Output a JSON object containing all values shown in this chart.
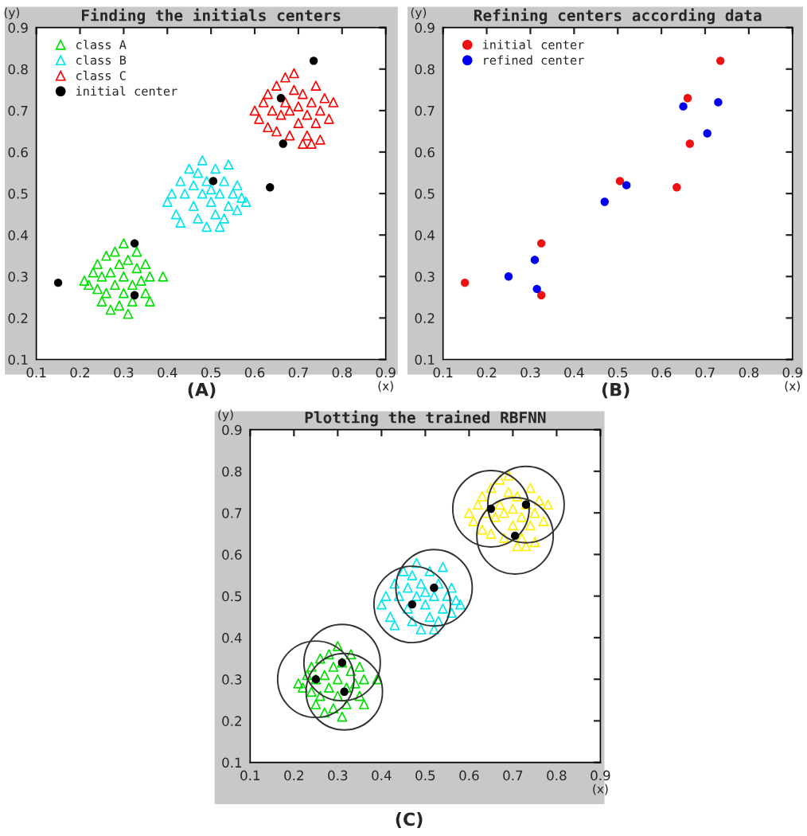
{
  "chart_data": [
    {
      "type": "scatter",
      "title": "Finding the initials centers",
      "xlabel": "(x)",
      "ylabel": "(y)",
      "annotations": [
        "(A)"
      ],
      "xlim": [
        0.1,
        0.9
      ],
      "ylim": [
        0.1,
        0.9
      ],
      "xticks": [
        0.1,
        0.2,
        0.3,
        0.4,
        0.5,
        0.6,
        0.7,
        0.8,
        0.9
      ],
      "yticks": [
        0.1,
        0.2,
        0.3,
        0.4,
        0.5,
        0.6,
        0.7,
        0.8,
        0.9
      ],
      "grid": false,
      "legend": "top left",
      "marker": "triangle",
      "series": [
        {
          "name": "class A",
          "color": "#00e000",
          "x": [
            0.21,
            0.22,
            0.23,
            0.24,
            0.24,
            0.25,
            0.25,
            0.26,
            0.26,
            0.27,
            0.27,
            0.28,
            0.28,
            0.29,
            0.29,
            0.3,
            0.3,
            0.3,
            0.31,
            0.31,
            0.32,
            0.32,
            0.33,
            0.33,
            0.34,
            0.35,
            0.35,
            0.36,
            0.36,
            0.39
          ],
          "values": [
            0.29,
            0.28,
            0.31,
            0.27,
            0.33,
            0.24,
            0.3,
            0.35,
            0.26,
            0.22,
            0.31,
            0.28,
            0.36,
            0.23,
            0.33,
            0.3,
            0.38,
            0.26,
            0.21,
            0.34,
            0.28,
            0.24,
            0.32,
            0.36,
            0.29,
            0.26,
            0.33,
            0.3,
            0.24,
            0.3
          ]
        },
        {
          "name": "class B",
          "color": "#00e5ee",
          "x": [
            0.4,
            0.41,
            0.42,
            0.43,
            0.43,
            0.44,
            0.45,
            0.46,
            0.46,
            0.47,
            0.47,
            0.48,
            0.48,
            0.49,
            0.49,
            0.5,
            0.5,
            0.51,
            0.51,
            0.52,
            0.52,
            0.53,
            0.54,
            0.54,
            0.55,
            0.56,
            0.56,
            0.57,
            0.58,
            0.53
          ],
          "values": [
            0.48,
            0.5,
            0.45,
            0.53,
            0.43,
            0.5,
            0.56,
            0.47,
            0.52,
            0.44,
            0.55,
            0.5,
            0.58,
            0.42,
            0.53,
            0.48,
            0.51,
            0.45,
            0.56,
            0.5,
            0.42,
            0.53,
            0.47,
            0.57,
            0.5,
            0.52,
            0.46,
            0.49,
            0.48,
            0.44
          ]
        },
        {
          "name": "class C",
          "color": "#ff0000",
          "x": [
            0.6,
            0.61,
            0.62,
            0.63,
            0.63,
            0.64,
            0.65,
            0.65,
            0.66,
            0.67,
            0.67,
            0.68,
            0.68,
            0.69,
            0.69,
            0.7,
            0.7,
            0.71,
            0.71,
            0.72,
            0.72,
            0.73,
            0.74,
            0.74,
            0.75,
            0.75,
            0.76,
            0.77,
            0.78,
            0.73
          ],
          "values": [
            0.7,
            0.68,
            0.72,
            0.66,
            0.74,
            0.7,
            0.76,
            0.65,
            0.69,
            0.78,
            0.72,
            0.64,
            0.7,
            0.75,
            0.79,
            0.67,
            0.71,
            0.62,
            0.74,
            0.69,
            0.64,
            0.72,
            0.67,
            0.76,
            0.7,
            0.63,
            0.73,
            0.68,
            0.72,
            0.62
          ]
        },
        {
          "name": "initial center",
          "color": "#000000",
          "marker": "circle",
          "x": [
            0.15,
            0.325,
            0.325,
            0.505,
            0.635,
            0.66,
            0.665,
            0.735
          ],
          "values": [
            0.285,
            0.38,
            0.255,
            0.53,
            0.515,
            0.73,
            0.62,
            0.82
          ]
        }
      ]
    },
    {
      "type": "scatter",
      "title": "Refining centers according data",
      "xlabel": "(x)",
      "ylabel": "(y)",
      "annotations": [
        "(B)"
      ],
      "xlim": [
        0.1,
        0.9
      ],
      "ylim": [
        0.1,
        0.9
      ],
      "xticks": [
        0.1,
        0.2,
        0.3,
        0.4,
        0.5,
        0.6,
        0.7,
        0.8,
        0.9
      ],
      "yticks": [
        0.1,
        0.2,
        0.3,
        0.4,
        0.5,
        0.6,
        0.7,
        0.8,
        0.9
      ],
      "grid": false,
      "legend": "top left",
      "marker": "circle",
      "series": [
        {
          "name": "initial center",
          "color": "#ee1111",
          "x": [
            0.15,
            0.325,
            0.325,
            0.505,
            0.635,
            0.66,
            0.665,
            0.735
          ],
          "values": [
            0.285,
            0.38,
            0.255,
            0.53,
            0.515,
            0.73,
            0.62,
            0.82
          ]
        },
        {
          "name": "refined center",
          "color": "#0000ee",
          "x": [
            0.25,
            0.31,
            0.315,
            0.47,
            0.52,
            0.65,
            0.705,
            0.73
          ],
          "values": [
            0.3,
            0.34,
            0.27,
            0.48,
            0.52,
            0.71,
            0.645,
            0.72
          ]
        }
      ]
    },
    {
      "type": "scatter",
      "title": "Plotting the trained RBFNN",
      "xlabel": "(x)",
      "ylabel": "(y)",
      "annotations": [
        "(C)"
      ],
      "xlim": [
        0.1,
        0.9
      ],
      "ylim": [
        0.1,
        0.9
      ],
      "xticks": [
        0.1,
        0.2,
        0.3,
        0.4,
        0.5,
        0.6,
        0.7,
        0.8,
        0.9
      ],
      "yticks": [
        0.1,
        0.2,
        0.3,
        0.4,
        0.5,
        0.6,
        0.7,
        0.8,
        0.9
      ],
      "grid": false,
      "legend": false,
      "marker": "triangle",
      "series": [
        {
          "color": "#00e000",
          "x": [
            0.21,
            0.22,
            0.23,
            0.24,
            0.24,
            0.25,
            0.25,
            0.26,
            0.26,
            0.27,
            0.27,
            0.28,
            0.28,
            0.29,
            0.29,
            0.3,
            0.3,
            0.3,
            0.31,
            0.31,
            0.32,
            0.32,
            0.33,
            0.33,
            0.34,
            0.35,
            0.35,
            0.36,
            0.36,
            0.39
          ],
          "values": [
            0.29,
            0.28,
            0.31,
            0.27,
            0.33,
            0.24,
            0.3,
            0.35,
            0.26,
            0.22,
            0.31,
            0.28,
            0.36,
            0.23,
            0.33,
            0.3,
            0.38,
            0.26,
            0.21,
            0.34,
            0.28,
            0.24,
            0.32,
            0.36,
            0.29,
            0.26,
            0.33,
            0.3,
            0.24,
            0.3
          ]
        },
        {
          "color": "#00e5ee",
          "x": [
            0.4,
            0.41,
            0.42,
            0.43,
            0.43,
            0.44,
            0.45,
            0.46,
            0.46,
            0.47,
            0.47,
            0.48,
            0.48,
            0.49,
            0.49,
            0.5,
            0.5,
            0.51,
            0.51,
            0.52,
            0.52,
            0.53,
            0.54,
            0.54,
            0.55,
            0.56,
            0.56,
            0.57,
            0.58,
            0.53
          ],
          "values": [
            0.48,
            0.5,
            0.45,
            0.53,
            0.43,
            0.5,
            0.56,
            0.47,
            0.52,
            0.44,
            0.55,
            0.5,
            0.58,
            0.42,
            0.53,
            0.48,
            0.51,
            0.45,
            0.56,
            0.5,
            0.42,
            0.53,
            0.47,
            0.57,
            0.5,
            0.52,
            0.46,
            0.49,
            0.48,
            0.44
          ]
        },
        {
          "color": "#ffee00",
          "x": [
            0.6,
            0.61,
            0.62,
            0.63,
            0.63,
            0.64,
            0.65,
            0.65,
            0.66,
            0.67,
            0.67,
            0.68,
            0.68,
            0.69,
            0.69,
            0.7,
            0.7,
            0.71,
            0.71,
            0.72,
            0.72,
            0.73,
            0.74,
            0.74,
            0.75,
            0.75,
            0.76,
            0.77,
            0.78,
            0.73
          ],
          "values": [
            0.7,
            0.68,
            0.72,
            0.66,
            0.74,
            0.7,
            0.76,
            0.65,
            0.69,
            0.78,
            0.72,
            0.64,
            0.7,
            0.75,
            0.79,
            0.67,
            0.71,
            0.62,
            0.74,
            0.69,
            0.64,
            0.72,
            0.67,
            0.76,
            0.7,
            0.63,
            0.73,
            0.68,
            0.72,
            0.62
          ]
        },
        {
          "type": "bubble",
          "marker": "circle",
          "color": "#333333",
          "x": [
            0.25,
            0.31,
            0.315,
            0.47,
            0.52,
            0.65,
            0.705,
            0.73
          ],
          "values": [
            0.3,
            0.34,
            0.27,
            0.48,
            0.52,
            0.71,
            0.645,
            0.72
          ],
          "sizes": [
            1,
            1,
            1,
            1,
            1,
            1,
            1,
            1
          ]
        },
        {
          "color": "#000000",
          "marker": "circle",
          "x": [
            0.25,
            0.31,
            0.315,
            0.47,
            0.52,
            0.65,
            0.705,
            0.73
          ],
          "values": [
            0.3,
            0.34,
            0.27,
            0.48,
            0.52,
            0.71,
            0.645,
            0.72
          ]
        }
      ]
    }
  ]
}
